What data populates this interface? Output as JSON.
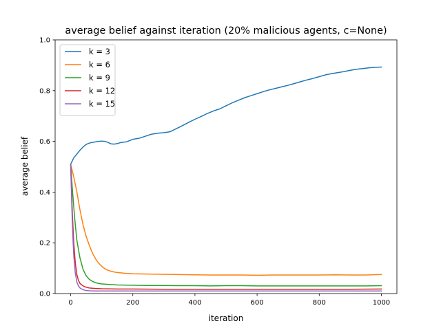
{
  "chart_data": {
    "type": "line",
    "title": "average belief against iteration (20% malicious agents, c=None)",
    "xlabel": "iteration",
    "ylabel": "average belief",
    "xlim": [
      -50,
      1050
    ],
    "ylim": [
      0.0,
      1.0
    ],
    "xticks": [
      0,
      200,
      400,
      600,
      800,
      1000
    ],
    "xtick_labels": [
      "0",
      "200",
      "400",
      "600",
      "800",
      "1000"
    ],
    "yticks": [
      0.0,
      0.2,
      0.4,
      0.6,
      0.8,
      1.0
    ],
    "ytick_labels": [
      "0.0",
      "0.2",
      "0.4",
      "0.6",
      "0.8",
      "1.0"
    ],
    "grid": false,
    "legend_position": "top-left",
    "series": [
      {
        "name": "k = 3",
        "color": "#1f77b4",
        "x": [
          0,
          10,
          20,
          30,
          40,
          50,
          60,
          70,
          80,
          90,
          100,
          110,
          120,
          130,
          140,
          150,
          160,
          170,
          180,
          190,
          200,
          220,
          240,
          260,
          280,
          300,
          320,
          340,
          360,
          380,
          400,
          420,
          440,
          460,
          480,
          500,
          520,
          540,
          560,
          580,
          600,
          620,
          640,
          660,
          680,
          700,
          720,
          740,
          760,
          780,
          800,
          820,
          840,
          860,
          880,
          900,
          920,
          940,
          960,
          980,
          1000
        ],
        "values": [
          0.51,
          0.535,
          0.55,
          0.565,
          0.578,
          0.588,
          0.593,
          0.596,
          0.598,
          0.6,
          0.601,
          0.6,
          0.596,
          0.59,
          0.589,
          0.591,
          0.595,
          0.597,
          0.598,
          0.603,
          0.608,
          0.612,
          0.62,
          0.628,
          0.632,
          0.634,
          0.638,
          0.65,
          0.662,
          0.675,
          0.687,
          0.698,
          0.71,
          0.72,
          0.728,
          0.74,
          0.752,
          0.762,
          0.772,
          0.78,
          0.788,
          0.796,
          0.803,
          0.809,
          0.815,
          0.821,
          0.828,
          0.835,
          0.842,
          0.848,
          0.855,
          0.862,
          0.867,
          0.871,
          0.875,
          0.88,
          0.884,
          0.887,
          0.89,
          0.892,
          0.893
        ]
      },
      {
        "name": "k = 6",
        "color": "#ff7f0e",
        "x": [
          0,
          10,
          20,
          30,
          40,
          50,
          60,
          70,
          80,
          90,
          100,
          110,
          120,
          130,
          140,
          150,
          175,
          200,
          250,
          300,
          350,
          400,
          450,
          500,
          550,
          600,
          650,
          700,
          750,
          800,
          850,
          900,
          950,
          1000
        ],
        "values": [
          0.51,
          0.46,
          0.4,
          0.33,
          0.27,
          0.225,
          0.19,
          0.16,
          0.137,
          0.12,
          0.107,
          0.098,
          0.092,
          0.088,
          0.085,
          0.083,
          0.08,
          0.078,
          0.077,
          0.076,
          0.075,
          0.074,
          0.073,
          0.073,
          0.073,
          0.072,
          0.073,
          0.073,
          0.073,
          0.073,
          0.074,
          0.073,
          0.073,
          0.075
        ]
      },
      {
        "name": "k = 9",
        "color": "#2ca02c",
        "x": [
          0,
          5,
          10,
          15,
          20,
          30,
          40,
          50,
          60,
          70,
          80,
          90,
          100,
          125,
          150,
          200,
          250,
          300,
          350,
          400,
          450,
          500,
          550,
          600,
          650,
          700,
          750,
          800,
          850,
          900,
          950,
          1000
        ],
        "values": [
          0.51,
          0.42,
          0.34,
          0.27,
          0.21,
          0.14,
          0.095,
          0.07,
          0.056,
          0.048,
          0.043,
          0.04,
          0.038,
          0.036,
          0.034,
          0.033,
          0.032,
          0.032,
          0.031,
          0.031,
          0.03,
          0.031,
          0.031,
          0.03,
          0.03,
          0.03,
          0.03,
          0.03,
          0.03,
          0.03,
          0.03,
          0.031
        ]
      },
      {
        "name": "k = 12",
        "color": "#d62728",
        "x": [
          0,
          3,
          6,
          10,
          15,
          20,
          25,
          30,
          40,
          50,
          60,
          80,
          100,
          150,
          200,
          300,
          400,
          500,
          600,
          700,
          800,
          900,
          1000
        ],
        "values": [
          0.51,
          0.4,
          0.3,
          0.2,
          0.12,
          0.075,
          0.052,
          0.04,
          0.03,
          0.025,
          0.022,
          0.02,
          0.019,
          0.018,
          0.018,
          0.017,
          0.017,
          0.017,
          0.017,
          0.017,
          0.017,
          0.017,
          0.018
        ]
      },
      {
        "name": "k = 15",
        "color": "#9467bd",
        "x": [
          0,
          2,
          4,
          6,
          8,
          10,
          15,
          20,
          25,
          30,
          40,
          50,
          60,
          80,
          100,
          150,
          200,
          300,
          400,
          500,
          600,
          700,
          800,
          900,
          1000
        ],
        "values": [
          0.51,
          0.42,
          0.33,
          0.26,
          0.2,
          0.15,
          0.08,
          0.045,
          0.03,
          0.022,
          0.015,
          0.012,
          0.011,
          0.01,
          0.01,
          0.01,
          0.01,
          0.01,
          0.01,
          0.01,
          0.01,
          0.01,
          0.01,
          0.01,
          0.01
        ]
      }
    ]
  }
}
